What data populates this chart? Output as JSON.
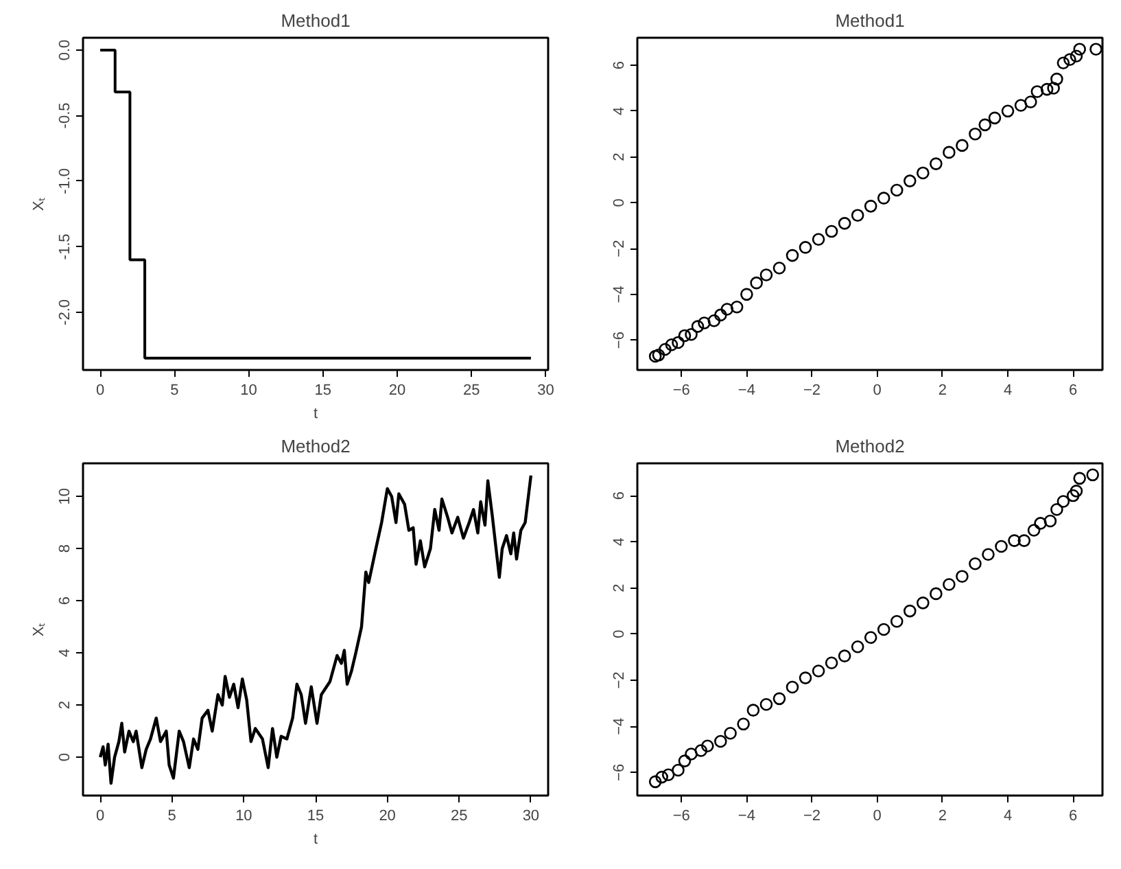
{
  "chart_data": [
    {
      "type": "step",
      "title": "Method1",
      "xlabel": "t",
      "ylabel": "Xₜ",
      "x": [
        0,
        1,
        2,
        3,
        29
      ],
      "series": [
        {
          "color": "#000000",
          "values": [
            0,
            -0.32,
            -1.6,
            -2.35,
            -2.35
          ]
        }
      ],
      "xlim": [
        -1.16,
        30.16
      ],
      "ylim": [
        -2.44,
        0.094
      ],
      "xticks": [
        0,
        5,
        10,
        15,
        20,
        25,
        30
      ],
      "yticks": [
        {
          "value": 0,
          "label": "0.0"
        },
        {
          "value": -0.5,
          "label": "-0.5"
        },
        {
          "value": -1,
          "label": "-1.0"
        },
        {
          "value": -1.5,
          "label": "-1.5"
        },
        {
          "value": -2,
          "label": "-2.0"
        }
      ]
    },
    {
      "type": "scatter",
      "title": "Method1",
      "marker": "circle",
      "x": [
        -6.8,
        -6.7,
        -6.5,
        -6.3,
        -6.1,
        -5.9,
        -5.7,
        -5.5,
        -5.3,
        -5.0,
        -4.8,
        -4.6,
        -4.3,
        -4.0,
        -3.7,
        -3.4,
        -3.0,
        -2.6,
        -2.2,
        -1.8,
        -1.4,
        -1.0,
        -0.6,
        -0.2,
        0.2,
        0.6,
        1.0,
        1.4,
        1.8,
        2.2,
        2.6,
        3.0,
        3.3,
        3.6,
        4.0,
        4.4,
        4.7,
        4.9,
        5.2,
        5.4,
        5.5,
        5.7,
        5.9,
        6.1,
        6.2,
        6.7
      ],
      "series": [
        {
          "color": "#000000",
          "values": [
            -6.7,
            -6.65,
            -6.4,
            -6.2,
            -6.1,
            -5.8,
            -5.75,
            -5.4,
            -5.25,
            -5.15,
            -4.9,
            -4.65,
            -4.55,
            -4.0,
            -3.5,
            -3.15,
            -2.85,
            -2.3,
            -1.95,
            -1.6,
            -1.25,
            -0.9,
            -0.55,
            -0.15,
            0.2,
            0.55,
            0.95,
            1.3,
            1.7,
            2.2,
            2.5,
            3.0,
            3.4,
            3.7,
            4.0,
            4.25,
            4.4,
            4.85,
            4.95,
            5.0,
            5.4,
            6.1,
            6.25,
            6.4,
            6.7,
            6.7
          ]
        }
      ],
      "xlim": [
        -7.35,
        6.9
      ],
      "ylim": [
        -7.3,
        7.2
      ],
      "xticks": [
        -6,
        -4,
        -2,
        0,
        2,
        4,
        6
      ],
      "yticks": [
        -6,
        -4,
        -2,
        0,
        2,
        4,
        6
      ]
    },
    {
      "type": "line",
      "title": "Method2",
      "xlabel": "t",
      "ylabel": "Xₜ",
      "x": [
        0,
        0.2,
        0.35,
        0.55,
        0.75,
        1.0,
        1.3,
        1.5,
        1.7,
        2.0,
        2.3,
        2.5,
        2.9,
        3.2,
        3.5,
        3.9,
        4.2,
        4.6,
        4.8,
        5.1,
        5.5,
        5.8,
        6.2,
        6.5,
        6.8,
        7.1,
        7.5,
        7.8,
        8.2,
        8.5,
        8.7,
        9.0,
        9.3,
        9.6,
        9.9,
        10.2,
        10.5,
        10.8,
        11.3,
        11.7,
        12.0,
        12.3,
        12.6,
        13.0,
        13.4,
        13.7,
        14.0,
        14.3,
        14.7,
        15.1,
        15.4,
        16.0,
        16.5,
        16.8,
        17.0,
        17.2,
        17.5,
        17.8,
        18.2,
        18.5,
        18.7,
        19.2,
        19.6,
        20.0,
        20.3,
        20.6,
        20.8,
        21.2,
        21.5,
        21.8,
        22.0,
        22.3,
        22.6,
        23.0,
        23.3,
        23.6,
        23.8,
        24.2,
        24.5,
        24.9,
        25.3,
        25.7,
        26.0,
        26.3,
        26.5,
        26.8,
        27.0,
        27.3,
        27.8,
        28.0,
        28.3,
        28.6,
        28.8,
        29.0,
        29.3,
        29.6,
        30.0
      ],
      "series": [
        {
          "color": "#000000",
          "values": [
            0,
            0.4,
            -0.3,
            0.5,
            -1.0,
            0.0,
            0.6,
            1.3,
            0.2,
            1.0,
            0.6,
            1.0,
            -0.4,
            0.3,
            0.7,
            1.5,
            0.6,
            1.0,
            -0.3,
            -0.8,
            1.0,
            0.6,
            -0.4,
            0.7,
            0.3,
            1.5,
            1.8,
            1.0,
            2.4,
            2.0,
            3.1,
            2.3,
            2.8,
            1.9,
            3.0,
            2.2,
            0.6,
            1.1,
            0.7,
            -0.4,
            1.1,
            0.0,
            0.8,
            0.7,
            1.5,
            2.8,
            2.4,
            1.3,
            2.7,
            1.3,
            2.4,
            2.9,
            3.9,
            3.6,
            4.1,
            2.8,
            3.3,
            4.0,
            5.0,
            7.1,
            6.7,
            8.0,
            9.0,
            10.3,
            10.0,
            9.0,
            10.1,
            9.7,
            8.7,
            8.8,
            7.4,
            8.3,
            7.3,
            8.0,
            9.5,
            8.7,
            9.9,
            9.2,
            8.6,
            9.2,
            8.4,
            9.0,
            9.5,
            8.6,
            9.8,
            8.9,
            10.6,
            9.3,
            6.9,
            8.0,
            8.5,
            7.8,
            8.6,
            7.6,
            8.7,
            9.0,
            10.8
          ]
        }
      ],
      "xlim": [
        -1.2,
        31.2
      ],
      "ylim": [
        -1.47,
        11.27
      ],
      "xticks": [
        0,
        5,
        10,
        15,
        20,
        25,
        30
      ],
      "yticks": [
        0,
        2,
        4,
        6,
        8,
        10
      ]
    },
    {
      "type": "scatter",
      "title": "Method2",
      "marker": "circle",
      "x": [
        -6.8,
        -6.6,
        -6.4,
        -6.1,
        -5.9,
        -5.7,
        -5.4,
        -5.2,
        -4.8,
        -4.5,
        -4.1,
        -3.8,
        -3.4,
        -3.0,
        -2.6,
        -2.2,
        -1.8,
        -1.4,
        -1.0,
        -0.6,
        -0.2,
        0.2,
        0.6,
        1.0,
        1.4,
        1.8,
        2.2,
        2.6,
        3.0,
        3.4,
        3.8,
        4.2,
        4.5,
        4.8,
        5.0,
        5.3,
        5.5,
        5.7,
        6.0,
        6.1,
        6.2,
        6.6
      ],
      "series": [
        {
          "color": "#000000",
          "values": [
            -6.4,
            -6.2,
            -6.1,
            -5.9,
            -5.5,
            -5.2,
            -5.05,
            -4.85,
            -4.65,
            -4.3,
            -3.9,
            -3.3,
            -3.05,
            -2.8,
            -2.3,
            -1.9,
            -1.6,
            -1.25,
            -0.95,
            -0.55,
            -0.15,
            0.2,
            0.55,
            1.0,
            1.35,
            1.75,
            2.15,
            2.5,
            3.05,
            3.45,
            3.8,
            4.05,
            4.05,
            4.5,
            4.8,
            4.9,
            5.4,
            5.75,
            6.0,
            6.2,
            6.75,
            6.9
          ]
        }
      ],
      "xlim": [
        -7.35,
        6.9
      ],
      "ylim": [
        -7.0,
        7.4
      ],
      "xticks": [
        -6,
        -4,
        -2,
        0,
        2,
        4,
        6
      ],
      "yticks": [
        -6,
        -4,
        -2,
        0,
        2,
        4,
        6
      ]
    }
  ]
}
